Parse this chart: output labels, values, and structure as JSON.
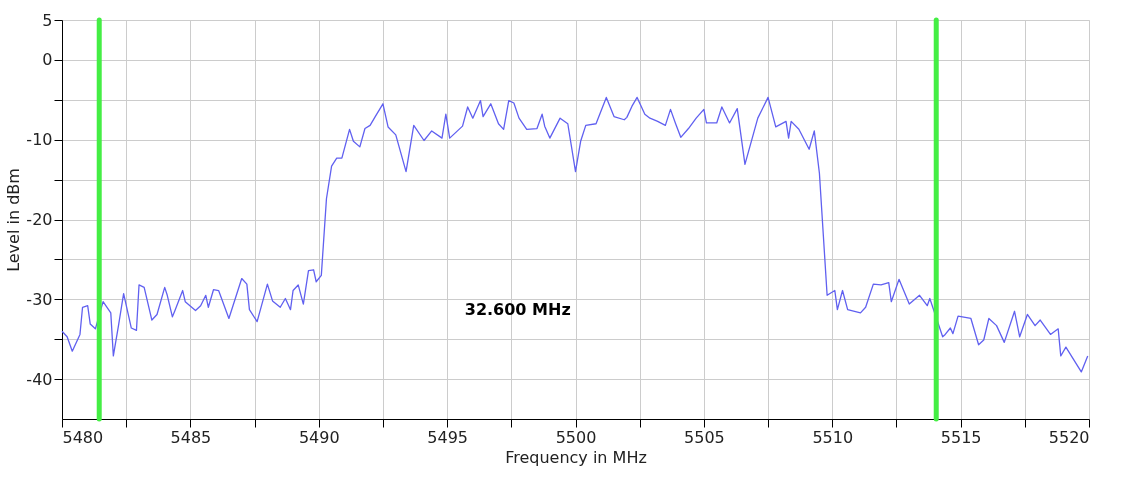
{
  "chart_data": {
    "type": "line",
    "xlabel": "Frequency in MHz",
    "ylabel": "Level in dBm",
    "xlim": [
      5480,
      5520
    ],
    "xticks": [
      5480,
      {
        "value": 5482.5,
        "label": null
      },
      5485,
      {
        "value": 5487.5,
        "label": null
      },
      5490,
      {
        "value": 5492.5,
        "label": null
      },
      5495,
      {
        "value": 5497.5,
        "label": null
      },
      5500,
      {
        "value": 5502.5,
        "label": null
      },
      5505,
      {
        "value": 5507.5,
        "label": null
      },
      5510,
      {
        "value": 5512.5,
        "label": null
      },
      5515,
      {
        "value": 5517.5,
        "label": null
      },
      5520
    ],
    "ylim": [
      -45,
      5
    ],
    "yticks": [
      5,
      0,
      {
        "value": -5,
        "label": null
      },
      -10,
      {
        "value": -15,
        "label": null
      },
      -20,
      {
        "value": -25,
        "label": null
      },
      -30,
      {
        "value": -35,
        "label": null
      },
      -40
    ],
    "grid": true,
    "line_style": "solid",
    "marker": "none",
    "x": [
      5480.0,
      5480.2,
      5480.4,
      5480.7,
      5480.8,
      5481.0,
      5481.1,
      5481.3,
      5481.6,
      5481.9,
      5482.0,
      5482.2,
      5482.4,
      5482.7,
      5482.9,
      5483.0,
      5483.2,
      5483.5,
      5483.7,
      5484.0,
      5484.1,
      5484.3,
      5484.4,
      5484.7,
      5484.8,
      5485.2,
      5485.4,
      5485.6,
      5485.7,
      5485.9,
      5486.1,
      5486.5,
      5487.0,
      5487.2,
      5487.3,
      5487.6,
      5488.0,
      5488.2,
      5488.5,
      5488.7,
      5488.9,
      5489.0,
      5489.2,
      5489.4,
      5489.6,
      5489.8,
      5489.9,
      5490.1,
      5490.3,
      5490.5,
      5490.7,
      5490.9,
      5491.2,
      5491.35,
      5491.6,
      5491.8,
      5492.0,
      5492.2,
      5492.5,
      5492.7,
      5493.0,
      5493.4,
      5493.7,
      5494.1,
      5494.4,
      5494.8,
      5494.95,
      5495.1,
      5495.6,
      5495.8,
      5496.0,
      5496.3,
      5496.4,
      5496.7,
      5497.0,
      5497.2,
      5497.4,
      5497.6,
      5497.8,
      5498.1,
      5498.5,
      5498.7,
      5498.8,
      5499.0,
      5499.4,
      5499.7,
      5500.0,
      5500.2,
      5500.4,
      5500.8,
      5501.2,
      5501.5,
      5501.9,
      5502.0,
      5502.2,
      5502.4,
      5502.7,
      5502.9,
      5503.2,
      5503.5,
      5503.7,
      5503.9,
      5504.1,
      5504.4,
      5504.7,
      5505.0,
      5505.1,
      5505.5,
      5505.7,
      5506.0,
      5506.3,
      5506.6,
      5507.1,
      5507.5,
      5507.8,
      5508.2,
      5508.3,
      5508.4,
      5508.7,
      5509.1,
      5509.3,
      5509.5,
      5509.8,
      5510.1,
      5510.2,
      5510.4,
      5510.6,
      5511.1,
      5511.3,
      5511.6,
      5511.9,
      5512.2,
      5512.3,
      5512.6,
      5513.0,
      5513.4,
      5513.7,
      5513.8,
      5514.3,
      5514.4,
      5514.6,
      5514.7,
      5514.9,
      5515.4,
      5515.7,
      5515.9,
      5516.1,
      5516.4,
      5516.7,
      5517.1,
      5517.3,
      5517.6,
      5517.9,
      5518.1,
      5518.5,
      5518.8,
      5518.9,
      5519.1,
      5519.7,
      5519.95
    ],
    "series": [
      {
        "color": "#6060f0",
        "values": [
          -34.0,
          -34.7,
          -36.5,
          -34.4,
          -31.0,
          -30.8,
          -33.1,
          -33.7,
          -30.3,
          -31.7,
          -37.1,
          -33.3,
          -29.3,
          -33.6,
          -33.9,
          -28.2,
          -28.5,
          -32.6,
          -31.9,
          -28.5,
          -29.5,
          -32.2,
          -31.4,
          -28.9,
          -30.3,
          -31.4,
          -30.8,
          -29.5,
          -31.0,
          -28.8,
          -28.9,
          -32.4,
          -27.4,
          -28.1,
          -31.3,
          -32.8,
          -28.1,
          -30.2,
          -31.0,
          -29.9,
          -31.3,
          -28.9,
          -28.2,
          -30.6,
          -26.4,
          -26.3,
          -27.8,
          -27.0,
          -17.4,
          -13.3,
          -12.3,
          -12.3,
          -8.7,
          -10.2,
          -10.9,
          -8.6,
          -8.2,
          -7.1,
          -5.5,
          -8.4,
          -9.4,
          -14.0,
          -8.2,
          -10.1,
          -8.9,
          -9.8,
          -6.8,
          -9.8,
          -8.3,
          -5.9,
          -7.3,
          -5.1,
          -7.1,
          -5.5,
          -8.0,
          -8.7,
          -5.1,
          -5.4,
          -7.3,
          -8.7,
          -8.6,
          -6.8,
          -8.3,
          -9.8,
          -7.3,
          -8.0,
          -14.0,
          -10.2,
          -8.2,
          -8.0,
          -4.7,
          -7.1,
          -7.5,
          -7.2,
          -5.8,
          -4.7,
          -6.8,
          -7.3,
          -7.7,
          -8.2,
          -6.2,
          -8.0,
          -9.7,
          -8.6,
          -7.3,
          -6.2,
          -7.9,
          -7.9,
          -5.9,
          -7.9,
          -6.1,
          -13.1,
          -7.3,
          -4.7,
          -8.4,
          -7.7,
          -9.8,
          -7.7,
          -8.7,
          -11.2,
          -8.9,
          -14.2,
          -29.5,
          -28.9,
          -31.3,
          -28.9,
          -31.3,
          -31.7,
          -31.0,
          -28.1,
          -28.2,
          -27.9,
          -30.3,
          -27.5,
          -30.6,
          -29.5,
          -30.8,
          -29.9,
          -34.7,
          -34.4,
          -33.6,
          -34.3,
          -32.1,
          -32.4,
          -35.7,
          -35.1,
          -32.4,
          -33.3,
          -35.4,
          -31.5,
          -34.7,
          -31.9,
          -33.3,
          -32.6,
          -34.4,
          -33.7,
          -37.1,
          -36.0,
          -39.1,
          -37.1
        ]
      }
    ],
    "ref_lines": [
      {
        "axis": "x",
        "value": 5481.45,
        "color": "#44ee44",
        "line_style": "solid"
      },
      {
        "axis": "x",
        "value": 5514.05,
        "color": "#44ee44",
        "line_style": "solid"
      }
    ],
    "annotations": [
      "32.600 MHz"
    ]
  }
}
